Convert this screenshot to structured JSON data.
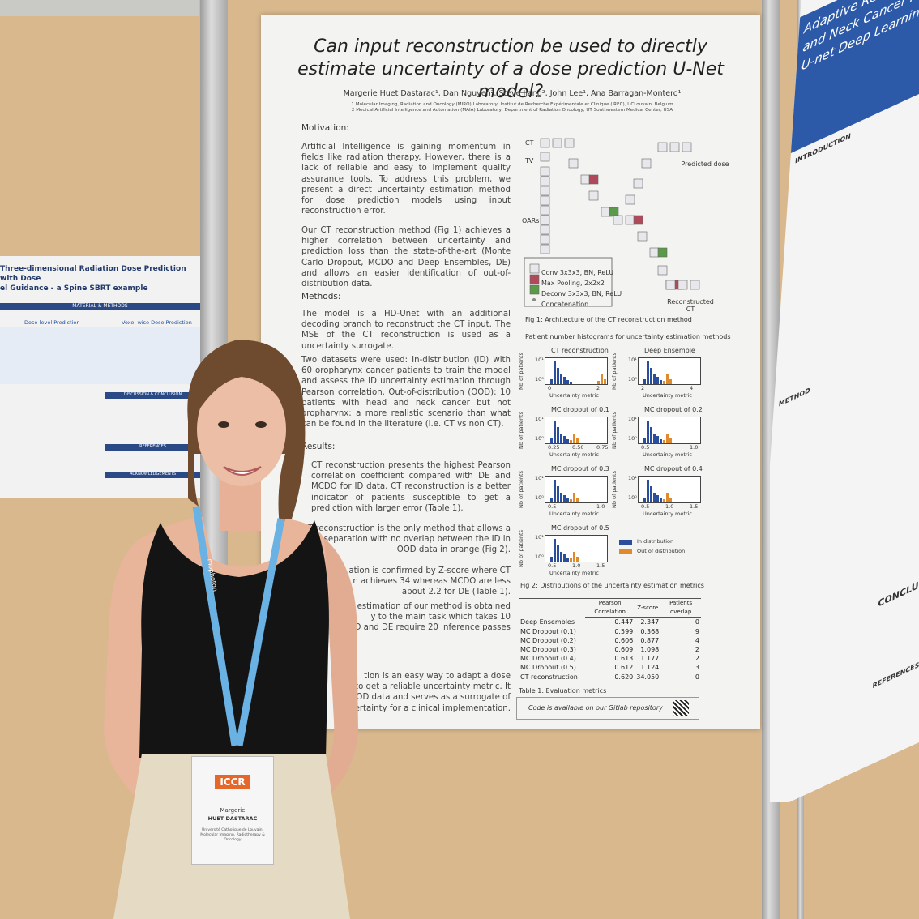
{
  "main_poster": {
    "title": "Can input reconstruction be used to directly estimate uncertainty of a dose prediction U-Net model?",
    "authors": "Margerie Huet Dastarac¹, Dan Nguyen², Steve Jiang², John Lee¹, Ana Barragan-Montero¹",
    "affiliations": [
      "1 Molecular Imaging, Radiation and Oncology (MIRO) Laboratory, Institut de Recherche Expérimentale et Clinique (IREC), UCLouvain, Belgium",
      "2 Medical Artificial Intelligence and Automation (MAIA) Laboratory, Department of Radiation Oncology, UT Southwestern Medical Center, USA"
    ],
    "motivation": {
      "heading": "Motivation:",
      "paragraphs": [
        "Artificial Intelligence is gaining momentum in fields like radiation therapy. However, there is a lack of reliable and easy to implement quality assurance tools. To address this problem, we present a direct uncertainty estimation method for dose prediction models using input reconstruction error.",
        "Our CT reconstruction method (Fig 1) achieves a higher correlation between uncertainty and prediction loss than the state-of-the-art (Monte Carlo Dropout, MCDO and Deep Ensembles, DE) and allows an easier identification of out-of-distribution data."
      ]
    },
    "methods": {
      "heading": "Methods:",
      "paragraphs": [
        "The model is a HD-Unet with an additional decoding branch to reconstruct the CT input. The MSE of the CT reconstruction is used as a uncertainty surrogate.",
        "Two datasets were used: In-distribution (ID) with 60 oropharynx cancer patients to train the model and assess the ID uncertainty estimation through Pearson correlation. Out-of-distribution (OOD): 10 patients with head and neck cancer but not oropharynx: a more realistic scenario than what can be found in the literature (i.e. CT vs non CT)."
      ]
    },
    "results": {
      "heading": "Results:",
      "paragraph": "CT reconstruction presents the highest Pearson correlation coefficient compared with DE and MCDO for ID data. CT reconstruction is a better indicator of patients susceptible to get a prediction with larger error (Table 1).",
      "fragments": [
        [
          "CT reconstruction is the only method that allows a",
          "lear separation with no overlap between the ID in",
          "OOD data in orange (Fig 2)."
        ],
        [
          "ation is confirmed by Z-score where CT",
          "n achieves 34 whereas MCDO are less",
          "about 2.2 for DE (Table 1)."
        ],
        [
          "ty estimation of our method is obtained",
          "y to the main task which takes 10",
          "DO and DE require 20 inference passes"
        ],
        [
          "tion is an easy way to adapt a dose",
          "et to get a reliable uncertainty metric. It",
          "ct OOD data and serves as a surrogate of",
          "ncertainty for a clinical implementation."
        ]
      ]
    },
    "figure1": {
      "inputs": [
        "CT",
        "TV",
        "OARs"
      ],
      "outputs": [
        "Predicted dose",
        "Reconstructed CT"
      ],
      "legend": [
        "Conv 3x3x3, BN, ReLU",
        "Max Pooling, 2x2x2",
        "Deconv 3x3x3, BN, ReLU",
        "Concatenation"
      ],
      "caption": "Fig 1: Architecture of the CT reconstruction method"
    },
    "figure2": {
      "subtitle": "Patient number histograms for uncertainty estimation methods",
      "y_label": "Nb of patients",
      "x_label": "Uncertainty metric",
      "y_tick_labels": [
        "10¹",
        "10⁰"
      ],
      "plots": [
        {
          "title": "CT reconstruction",
          "x_tick_labels": [
            "0",
            "2"
          ]
        },
        {
          "title": "Deep Ensemble",
          "x_tick_labels": [
            "2",
            "4"
          ]
        },
        {
          "title": "MC dropout of 0.1",
          "x_tick_labels": [
            "0.25",
            "0.50",
            "0.75"
          ]
        },
        {
          "title": "MC dropout of 0.2",
          "x_tick_labels": [
            "0.5",
            "1.0"
          ]
        },
        {
          "title": "MC dropout of 0.3",
          "x_tick_labels": [
            "0.5",
            "1.0"
          ]
        },
        {
          "title": "MC dropout of 0.4",
          "x_tick_labels": [
            "0.5",
            "1.0",
            "1.5"
          ]
        },
        {
          "title": "MC dropout of 0.5",
          "x_tick_labels": [
            "0.5",
            "1.0",
            "1.5"
          ]
        }
      ],
      "legend": [
        "In distribution",
        "Out of distribution"
      ],
      "caption": "Fig 2: Distributions of the uncertainty estimation metrics"
    },
    "table": {
      "headers": [
        "Pearson Correlation",
        "Z-score",
        "Patients overlap"
      ],
      "rows": [
        [
          "Deep Ensembles",
          "0.447",
          "2.347",
          "0"
        ],
        [
          "MC Dropout (0.1)",
          "0.599",
          "0.368",
          "9"
        ],
        [
          "MC Dropout (0.2)",
          "0.606",
          "0.877",
          "4"
        ],
        [
          "MC Dropout (0.3)",
          "0.609",
          "1.098",
          "2"
        ],
        [
          "MC Dropout (0.4)",
          "0.613",
          "1.177",
          "2"
        ],
        [
          "MC Dropout (0.5)",
          "0.612",
          "1.124",
          "3"
        ],
        [
          "CT reconstruction",
          "0.620",
          "34.050",
          "0"
        ]
      ],
      "caption": "Table 1: Evaluation metrics"
    },
    "code_note": "Code is available on our Gitlab repository"
  },
  "left_poster": {
    "title_lines": [
      "Three-dimensional Radiation Dose Prediction with Dose",
      "el Guidance - a Spine SBRT example"
    ],
    "sections": [
      "MATERIAL & METHODS",
      "DISCUSSION & CONCLUSION",
      "REFERENCES",
      "ACKNOWLEDGEMENTS"
    ],
    "panels": [
      "Dose-level Prediction",
      "Voxel-wise Dose Prediction"
    ]
  },
  "right_poster": {
    "title_lines": [
      "Adaptive Radiotherap",
      "and Neck Cancer Patien",
      "U-net Deep Learning Arc"
    ],
    "sections": [
      "INTRODUCTION",
      "METHOD",
      "CONCLUSI",
      "REFERENCES"
    ]
  },
  "badge": {
    "event": "ICCR",
    "first_name": "Margerie",
    "last_name": "HUET DASTARAC",
    "affiliation": "Université Catholique de Louvain, Molecular Imaging, Radiotherapy & Oncology"
  },
  "lanyard": "mophoton"
}
